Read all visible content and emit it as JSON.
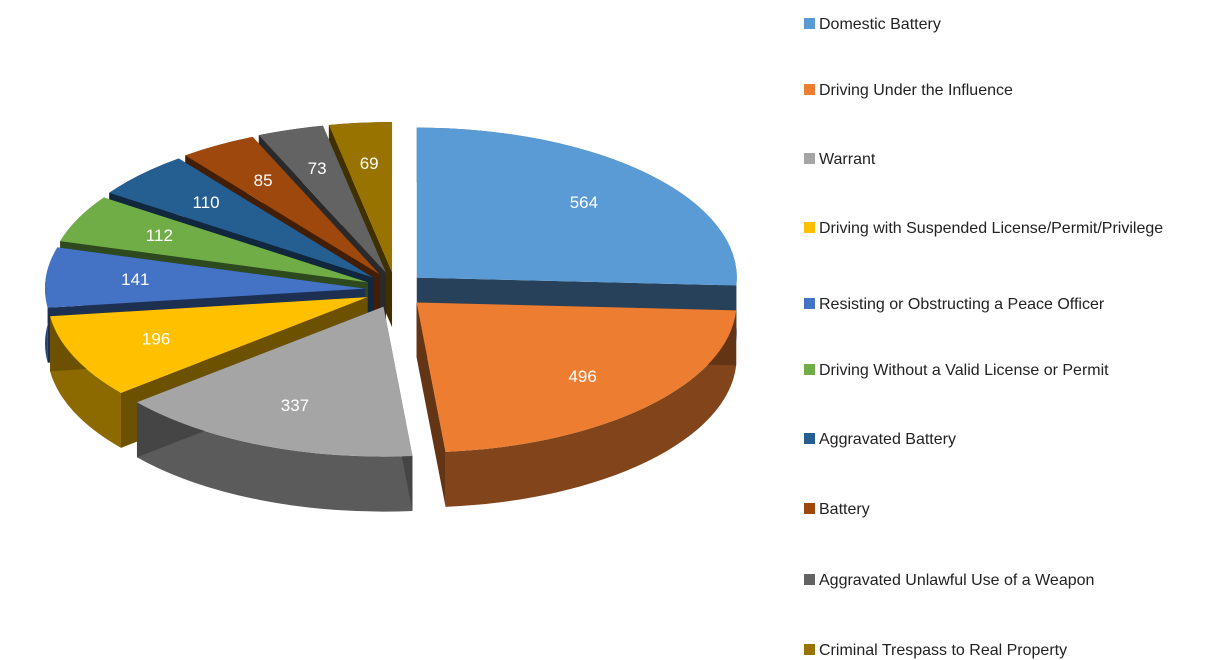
{
  "chart_data": {
    "type": "pie",
    "categories": [
      "Domestic Battery",
      "Driving Under the Influence",
      "Warrant",
      "Driving with Suspended License/Permit/Privilege",
      "Resisting or Obstructing a Peace Officer",
      "Driving Without a Valid License or Permit",
      "Aggravated Battery",
      "Battery",
      "Aggravated Unlawful Use of a Weapon",
      "Criminal Trespass to Real Property"
    ],
    "values": [
      564,
      496,
      337,
      196,
      141,
      112,
      110,
      85,
      73,
      69
    ],
    "colors": [
      "#5b9bd5",
      "#ed7d31",
      "#a5a5a5",
      "#ffc000",
      "#4472c4",
      "#70ad47",
      "#255e91",
      "#9e480e",
      "#636363",
      "#997300"
    ],
    "legend": "right"
  }
}
